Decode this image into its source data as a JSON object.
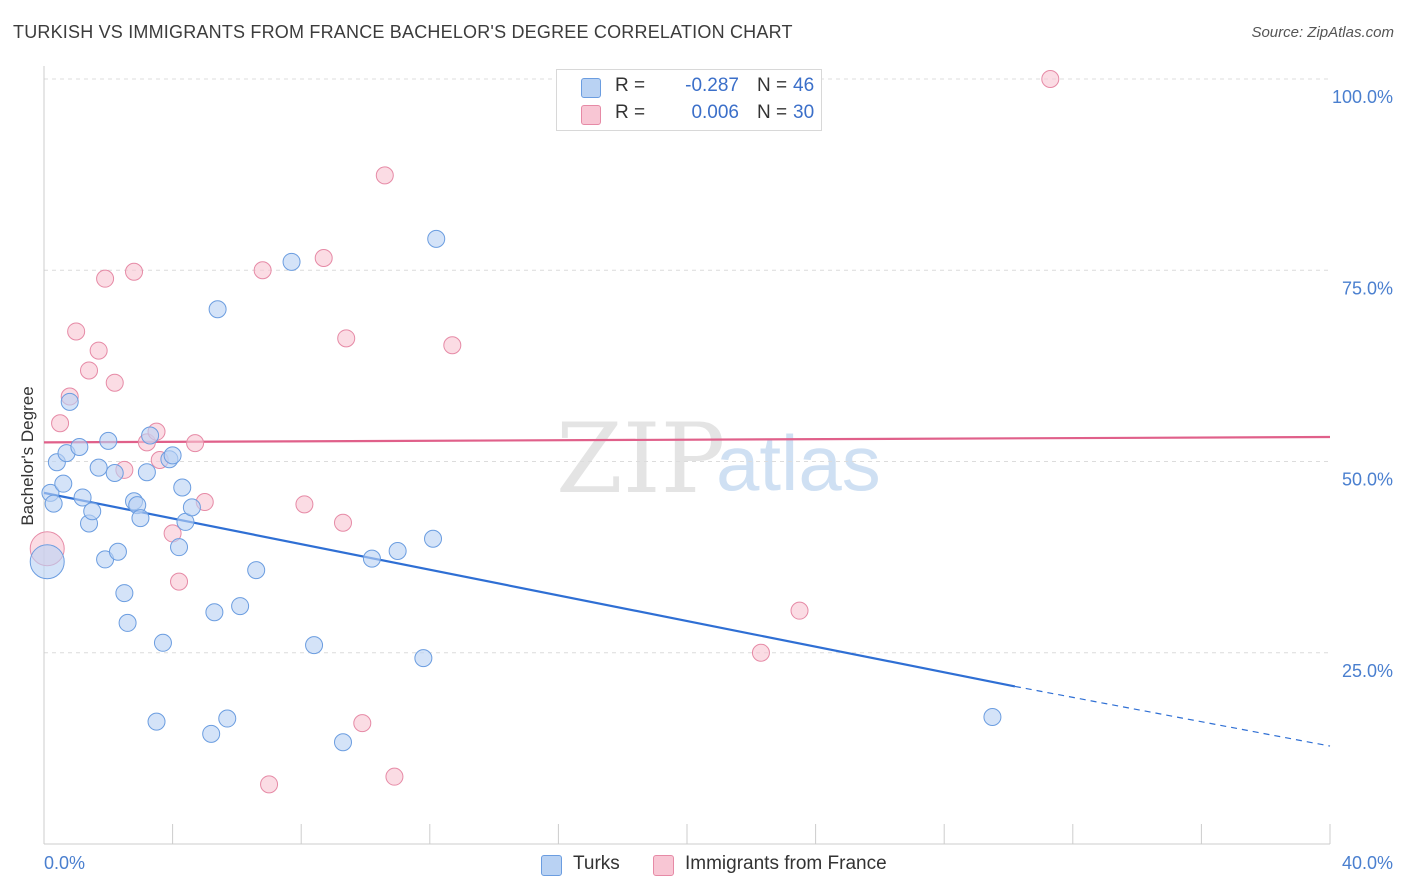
{
  "header": {
    "title": "TURKISH VS IMMIGRANTS FROM FRANCE BACHELOR'S DEGREE CORRELATION CHART",
    "source": "Source: ZipAtlas.com"
  },
  "stats": [
    {
      "r_label": "R =",
      "r_value": "-0.287",
      "n_label": "N =",
      "n_value": "46"
    },
    {
      "r_label": "R =",
      "r_value": "0.006",
      "n_label": "N =",
      "n_value": "30"
    }
  ],
  "legend": {
    "series1": "Turks",
    "series2": "Immigrants from France"
  },
  "watermark": {
    "zip": "ZIP",
    "atlas": "atlas"
  },
  "colors": {
    "turks_fill": "#b9d2f3",
    "turks_stroke": "#6b9de0",
    "turks_line": "#2f6fd4",
    "france_fill": "#f8c6d4",
    "france_stroke": "#e68aa6",
    "france_line": "#e0608a",
    "tick_text": "#4a7fcf"
  },
  "chart_data": {
    "type": "scatter",
    "title": "TURKISH VS IMMIGRANTS FROM FRANCE BACHELOR'S DEGREE CORRELATION CHART",
    "xlabel": "",
    "ylabel": "Bachelor's Degree",
    "xlim": [
      0,
      40
    ],
    "ylim": [
      0,
      100
    ],
    "x_tick_labels": [
      "0.0%",
      "40.0%"
    ],
    "y_ticks": [
      25,
      50,
      75,
      100
    ],
    "y_tick_labels": [
      "25.0%",
      "50.0%",
      "75.0%",
      "100.0%"
    ],
    "grid": true,
    "legend_position": "bottom",
    "series": [
      {
        "name": "Turks",
        "points": [
          [
            0.1,
            36.9
          ],
          [
            0.2,
            45.9
          ],
          [
            0.4,
            49.9
          ],
          [
            0.6,
            47.1
          ],
          [
            0.7,
            51.1
          ],
          [
            0.8,
            57.8
          ],
          [
            1.1,
            51.9
          ],
          [
            1.2,
            45.3
          ],
          [
            1.4,
            41.9
          ],
          [
            1.5,
            43.5
          ],
          [
            1.7,
            49.2
          ],
          [
            1.9,
            37.2
          ],
          [
            2.0,
            52.7
          ],
          [
            2.2,
            48.5
          ],
          [
            2.3,
            38.2
          ],
          [
            2.5,
            32.8
          ],
          [
            2.6,
            28.9
          ],
          [
            2.8,
            44.8
          ],
          [
            2.9,
            44.3
          ],
          [
            3.0,
            42.6
          ],
          [
            3.2,
            48.6
          ],
          [
            3.3,
            53.4
          ],
          [
            3.5,
            16.0
          ],
          [
            3.7,
            26.3
          ],
          [
            3.9,
            50.3
          ],
          [
            4.0,
            50.8
          ],
          [
            4.2,
            38.8
          ],
          [
            4.3,
            46.6
          ],
          [
            4.4,
            42.1
          ],
          [
            4.6,
            44.0
          ],
          [
            5.2,
            14.4
          ],
          [
            5.3,
            30.3
          ],
          [
            5.4,
            69.9
          ],
          [
            5.7,
            16.4
          ],
          [
            6.1,
            31.1
          ],
          [
            6.6,
            35.8
          ],
          [
            7.7,
            76.1
          ],
          [
            8.4,
            26.0
          ],
          [
            9.3,
            13.3
          ],
          [
            10.2,
            37.3
          ],
          [
            11.0,
            38.3
          ],
          [
            11.8,
            24.3
          ],
          [
            12.1,
            39.9
          ],
          [
            12.2,
            79.1
          ],
          [
            29.5,
            16.6
          ],
          [
            0.3,
            44.5
          ]
        ],
        "trend": {
          "x": [
            0,
            30.2
          ],
          "y": [
            45.9,
            20.6
          ],
          "dashed_extension": {
            "x": [
              30.2,
              40
            ],
            "y": [
              20.6,
              12.8
            ]
          }
        }
      },
      {
        "name": "Immigrants from France",
        "points": [
          [
            0.1,
            38.6
          ],
          [
            0.5,
            55.0
          ],
          [
            0.8,
            58.5
          ],
          [
            1.0,
            67.0
          ],
          [
            1.4,
            61.9
          ],
          [
            1.7,
            64.5
          ],
          [
            1.9,
            73.9
          ],
          [
            2.2,
            60.3
          ],
          [
            2.5,
            48.9
          ],
          [
            2.8,
            74.8
          ],
          [
            3.2,
            52.5
          ],
          [
            3.5,
            53.9
          ],
          [
            3.6,
            50.2
          ],
          [
            4.0,
            40.6
          ],
          [
            4.2,
            34.3
          ],
          [
            4.7,
            52.4
          ],
          [
            5.0,
            44.7
          ],
          [
            6.8,
            75.0
          ],
          [
            7.0,
            7.8
          ],
          [
            8.1,
            44.4
          ],
          [
            8.7,
            76.6
          ],
          [
            9.3,
            42.0
          ],
          [
            9.4,
            66.1
          ],
          [
            9.9,
            15.8
          ],
          [
            10.6,
            87.4
          ],
          [
            10.9,
            8.8
          ],
          [
            12.7,
            65.2
          ],
          [
            22.3,
            25.0
          ],
          [
            23.5,
            30.5
          ],
          [
            31.3,
            100.0
          ]
        ],
        "trend": {
          "x": [
            0,
            40
          ],
          "y": [
            52.5,
            53.2
          ]
        }
      }
    ]
  }
}
